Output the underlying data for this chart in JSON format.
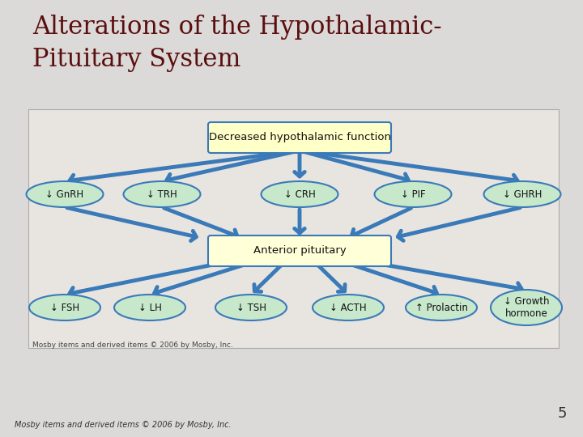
{
  "title_line1": "Alterations of the Hypothalamic-",
  "title_line2": "Pituitary System",
  "title_color": "#5a0f0f",
  "title_fontsize": 22,
  "slide_bg": "#dcdad8",
  "diagram_bg": "#e8e5e0",
  "top_box_text": "Decreased hypothalamic function",
  "top_box_color": "#ffffc8",
  "top_box_border": "#3a7ab8",
  "mid_box_text": "Anterior pituitary",
  "mid_box_color": "#ffffd8",
  "mid_box_border": "#3a7ab8",
  "hormone_labels": [
    "↓ GnRH",
    "↓ TRH",
    "↓ CRH",
    "↓ PIF",
    "↓ GHRH"
  ],
  "hormone_color": "#c8e8cc",
  "hormone_border": "#3a7ab8",
  "output_labels": [
    "↓ FSH",
    "↓ LH",
    "↓ TSH",
    "↓ ACTH",
    "↑ Prolactin",
    "↓ Growth\nhormone"
  ],
  "output_color": "#c8e8cc",
  "output_border": "#3a7ab8",
  "arrow_color": "#3a7ab8",
  "arrow_lw": 3.5,
  "footer_inner": "Mosby items and derived items © 2006 by Mosby, Inc.",
  "footer_bottom": "Mosby items and derived items © 2006 by Mosby, Inc.",
  "page_number": "5"
}
